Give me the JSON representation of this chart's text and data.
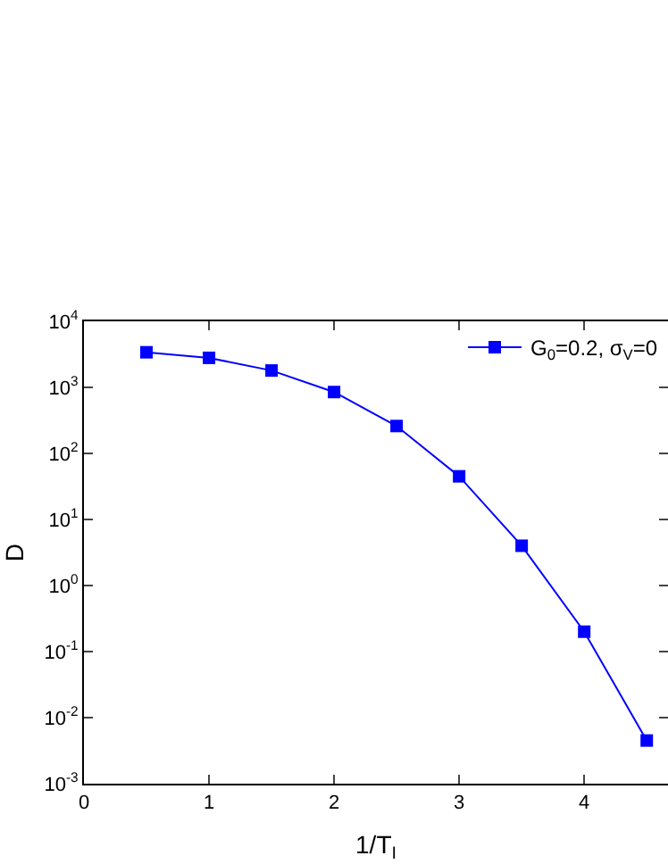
{
  "chart_data": {
    "type": "line",
    "xlabel": "1/T$_{I}$",
    "ylabel": "D",
    "x": [
      0.5,
      1,
      1.5,
      2,
      2.5,
      3,
      3.5,
      4,
      4.5
    ],
    "series": [
      {
        "name": "G$_{0}$=0.2, σ$_{V}$=0",
        "color": "#0000ff",
        "values": [
          3400,
          2800,
          1800,
          850,
          260,
          45,
          4,
          0.2,
          0.0045
        ]
      }
    ],
    "log": "y",
    "marker": "square",
    "line_style": "solid",
    "grid": false,
    "legend": "top right",
    "xlim": [
      0,
      4.67
    ],
    "xticks": [
      0,
      1,
      2,
      3,
      4
    ],
    "ylim": [
      0.001,
      10000
    ],
    "yticks": [
      {
        "value": 0.001,
        "label": "10$^{-3}$"
      },
      {
        "value": 0.01,
        "label": "10$^{-2}$"
      },
      {
        "value": 0.1,
        "label": "10$^{-1}$"
      },
      {
        "value": 1,
        "label": "10$^{0}$"
      },
      {
        "value": 10,
        "label": "10$^{1}$"
      },
      {
        "value": 100,
        "label": "10$^{2}$"
      },
      {
        "value": 1000,
        "label": "10$^{3}$"
      },
      {
        "value": 10000,
        "label": "10$^{4}$"
      }
    ]
  }
}
